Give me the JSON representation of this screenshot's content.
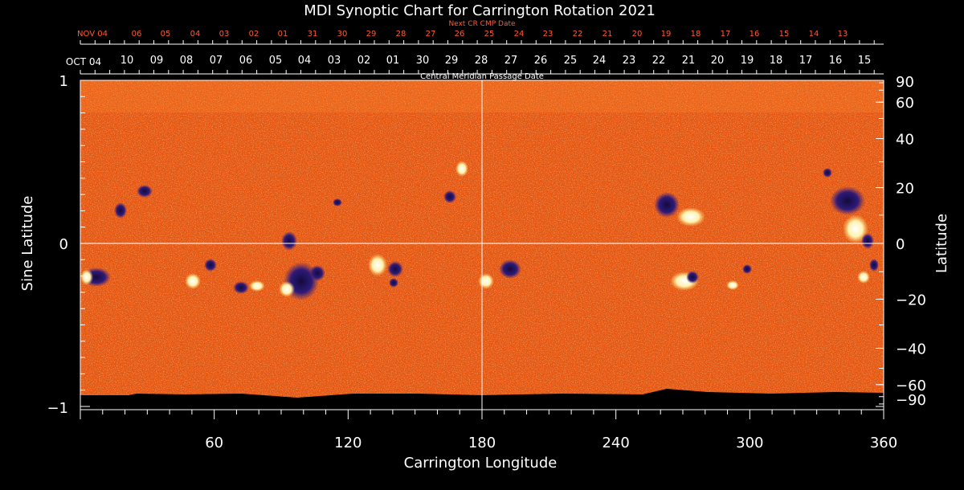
{
  "title": "MDI Synoptic Chart for Carrington Rotation 2021",
  "next_cr_label": "Next CR CMP Date",
  "cmp_label": "Central Meridian Passage Date",
  "top_red_ticks": [
    "NOV 04",
    "06",
    "05",
    "04",
    "03",
    "02",
    "01",
    "31",
    "30",
    "29",
    "28",
    "27",
    "26",
    "25",
    "24",
    "23",
    "22",
    "21",
    "20",
    "19",
    "18",
    "17",
    "16",
    "15",
    "14",
    "13"
  ],
  "top_white_start": "OCT 04",
  "top_white_ticks": [
    "10",
    "09",
    "08",
    "07",
    "06",
    "05",
    "04",
    "03",
    "02",
    "01",
    "30",
    "29",
    "28",
    "27",
    "26",
    "25",
    "24",
    "23",
    "22",
    "21",
    "20",
    "19",
    "18",
    "17",
    "16",
    "15"
  ],
  "left_axis": {
    "label": "Sine Latitude",
    "ticks": [
      "1",
      "0",
      "−1"
    ]
  },
  "right_axis": {
    "label": "Latitude",
    "ticks": [
      "90",
      "60",
      "40",
      "20",
      "0",
      "−20",
      "−40",
      "−60",
      "−90"
    ]
  },
  "bottom_axis": {
    "label": "Carrington Longitude",
    "ticks": [
      "60",
      "120",
      "180",
      "240",
      "300",
      "360"
    ]
  },
  "colors": {
    "background": "#000000",
    "field_base": "#f05a10",
    "negative_polarity": "#2a1a6e",
    "positive_polarity": "#fff6d8",
    "grid": "#ffffff",
    "red_ticks": "#ff5a32"
  }
}
